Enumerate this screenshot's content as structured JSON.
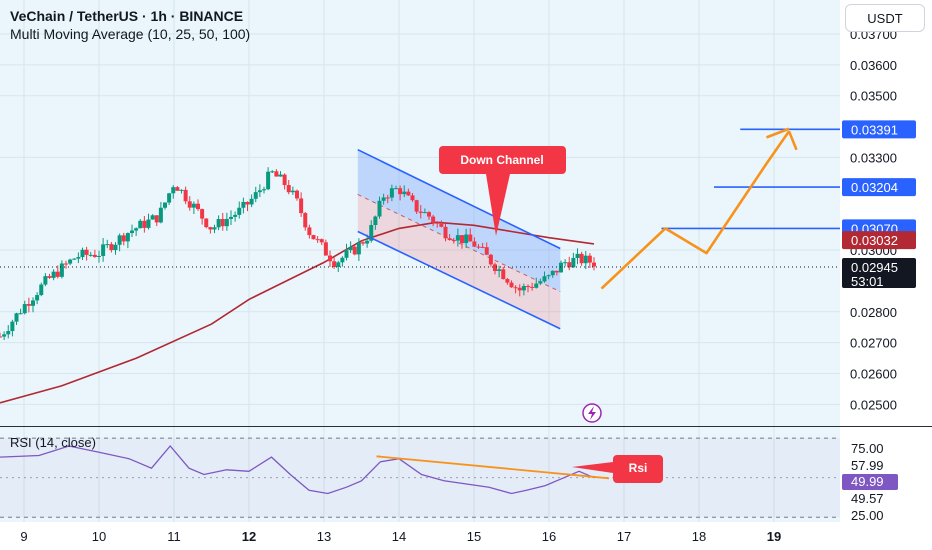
{
  "header": {
    "symbol_line": "VeChain / TetherUS · 1h · BINANCE",
    "indicator_line": "Multi Moving Average (10, 25, 50, 100)",
    "currency": "USDT"
  },
  "rsi_panel": {
    "title": "RSI (14, close)",
    "ticks": [
      "75.00",
      "57.99",
      "49.99",
      "49.57",
      "25.00"
    ],
    "annotation": "Rsi"
  },
  "chart_data": {
    "type": "candlestick",
    "price_axis": {
      "ticks": [
        "0.03700",
        "0.03600",
        "0.03500",
        "0.03300",
        "0.03000",
        "0.02800",
        "0.02700",
        "0.02600",
        "0.02500"
      ],
      "tick_values": [
        0.037,
        0.036,
        0.035,
        0.033,
        0.03,
        0.028,
        0.027,
        0.026,
        0.025
      ],
      "ylim": [
        0.0243,
        0.0381
      ]
    },
    "price_labels": [
      {
        "value": 0.03391,
        "text": "0.03391",
        "color": "#2962ff"
      },
      {
        "value": 0.03204,
        "text": "0.03204",
        "color": "#2962ff"
      },
      {
        "value": 0.0307,
        "text": "0.03070",
        "color": "#2962ff"
      },
      {
        "value": 0.03032,
        "text": "0.03032",
        "color": "#b22833"
      },
      {
        "value": 0.02945,
        "text": "0.02945",
        "subtext": "53:01",
        "color": "#131722"
      }
    ],
    "x_axis": {
      "ticks": [
        "9",
        "10",
        "11",
        "12",
        "13",
        "14",
        "15",
        "16",
        "17",
        "18",
        "19"
      ],
      "tick_x_values": [
        9,
        10,
        11,
        12,
        13,
        14,
        15,
        16,
        17,
        18,
        19
      ],
      "bold_ticks": [
        "12",
        "19"
      ],
      "xlim": [
        8.68,
        19.88
      ]
    },
    "candle_anchors": [
      [
        8.68,
        0.0272
      ],
      [
        9.0,
        0.0282
      ],
      [
        9.3,
        0.029
      ],
      [
        9.7,
        0.0298
      ],
      [
        10.0,
        0.0299
      ],
      [
        10.4,
        0.0306
      ],
      [
        10.8,
        0.0311
      ],
      [
        11.0,
        0.0322
      ],
      [
        11.2,
        0.0316
      ],
      [
        11.5,
        0.0307
      ],
      [
        11.7,
        0.031
      ],
      [
        11.9,
        0.0313
      ],
      [
        12.1,
        0.0318
      ],
      [
        12.3,
        0.0325
      ],
      [
        12.5,
        0.0321
      ],
      [
        12.65,
        0.0315
      ],
      [
        12.8,
        0.0306
      ],
      [
        13.0,
        0.03
      ],
      [
        13.15,
        0.0296
      ],
      [
        13.4,
        0.03
      ],
      [
        13.6,
        0.0305
      ],
      [
        13.8,
        0.0318
      ],
      [
        14.0,
        0.032
      ],
      [
        14.2,
        0.0314
      ],
      [
        14.4,
        0.0311
      ],
      [
        14.6,
        0.0306
      ],
      [
        14.8,
        0.0304
      ],
      [
        15.0,
        0.0302
      ],
      [
        15.2,
        0.0297
      ],
      [
        15.4,
        0.0292
      ],
      [
        15.6,
        0.0287
      ],
      [
        15.8,
        0.0289
      ],
      [
        16.0,
        0.0291
      ],
      [
        16.2,
        0.0296
      ],
      [
        16.4,
        0.0297
      ],
      [
        16.6,
        0.0296
      ]
    ],
    "moving_average": {
      "color": "#b22833",
      "points": [
        [
          8.68,
          0.02505
        ],
        [
          9.5,
          0.0256
        ],
        [
          10.5,
          0.0265
        ],
        [
          11.5,
          0.0276
        ],
        [
          12.0,
          0.0284
        ],
        [
          12.5,
          0.029
        ],
        [
          13.0,
          0.0296
        ],
        [
          13.5,
          0.0303
        ],
        [
          14.0,
          0.0307
        ],
        [
          14.5,
          0.0309
        ],
        [
          15.0,
          0.0308
        ],
        [
          15.5,
          0.0306
        ],
        [
          16.0,
          0.0304
        ],
        [
          16.6,
          0.0302
        ]
      ]
    },
    "current_price": 0.02945,
    "channel": {
      "label": "Down Channel",
      "upper": [
        [
          13.45,
          0.03325
        ],
        [
          16.15,
          0.03005
        ]
      ],
      "lower": [
        [
          13.45,
          0.0306
        ],
        [
          16.15,
          0.02745
        ]
      ],
      "mid": [
        [
          13.45,
          0.0318
        ],
        [
          16.15,
          0.02865
        ]
      ]
    },
    "horizontal_levels": [
      {
        "value": 0.03391,
        "x_start": 18.55
      },
      {
        "value": 0.03204,
        "x_start": 18.2
      },
      {
        "value": 0.0307,
        "x_start": 17.5
      }
    ],
    "projection_path": [
      [
        16.7,
        0.02875
      ],
      [
        17.55,
        0.0307
      ],
      [
        18.1,
        0.0299
      ],
      [
        18.9,
        0.0328
      ],
      [
        19.2,
        0.03385
      ],
      [
        19.3,
        0.03325
      ]
    ],
    "projection_arrowhead": [
      [
        18.9,
        0.03365
      ],
      [
        19.2,
        0.03393
      ]
    ],
    "rsi": {
      "ylim": [
        22,
        82
      ],
      "levels": [
        75,
        57.99,
        49.99,
        49.57,
        25
      ],
      "points": [
        [
          8.68,
          63
        ],
        [
          9.2,
          64
        ],
        [
          9.6,
          70
        ],
        [
          10.0,
          66
        ],
        [
          10.4,
          62
        ],
        [
          10.7,
          56
        ],
        [
          10.95,
          70
        ],
        [
          11.2,
          56
        ],
        [
          11.4,
          52
        ],
        [
          11.7,
          55
        ],
        [
          12.0,
          54
        ],
        [
          12.3,
          63
        ],
        [
          12.55,
          52
        ],
        [
          12.8,
          42
        ],
        [
          13.05,
          40
        ],
        [
          13.3,
          44
        ],
        [
          13.5,
          48
        ],
        [
          13.75,
          60
        ],
        [
          14.0,
          62
        ],
        [
          14.3,
          52
        ],
        [
          14.6,
          48
        ],
        [
          14.9,
          46
        ],
        [
          15.2,
          44
        ],
        [
          15.5,
          40
        ],
        [
          15.7,
          42
        ],
        [
          15.95,
          45
        ],
        [
          16.2,
          50
        ],
        [
          16.4,
          54
        ],
        [
          16.6,
          50
        ]
      ],
      "divergence_line": [
        [
          13.7,
          63.5
        ],
        [
          16.8,
          49.6
        ]
      ]
    }
  }
}
